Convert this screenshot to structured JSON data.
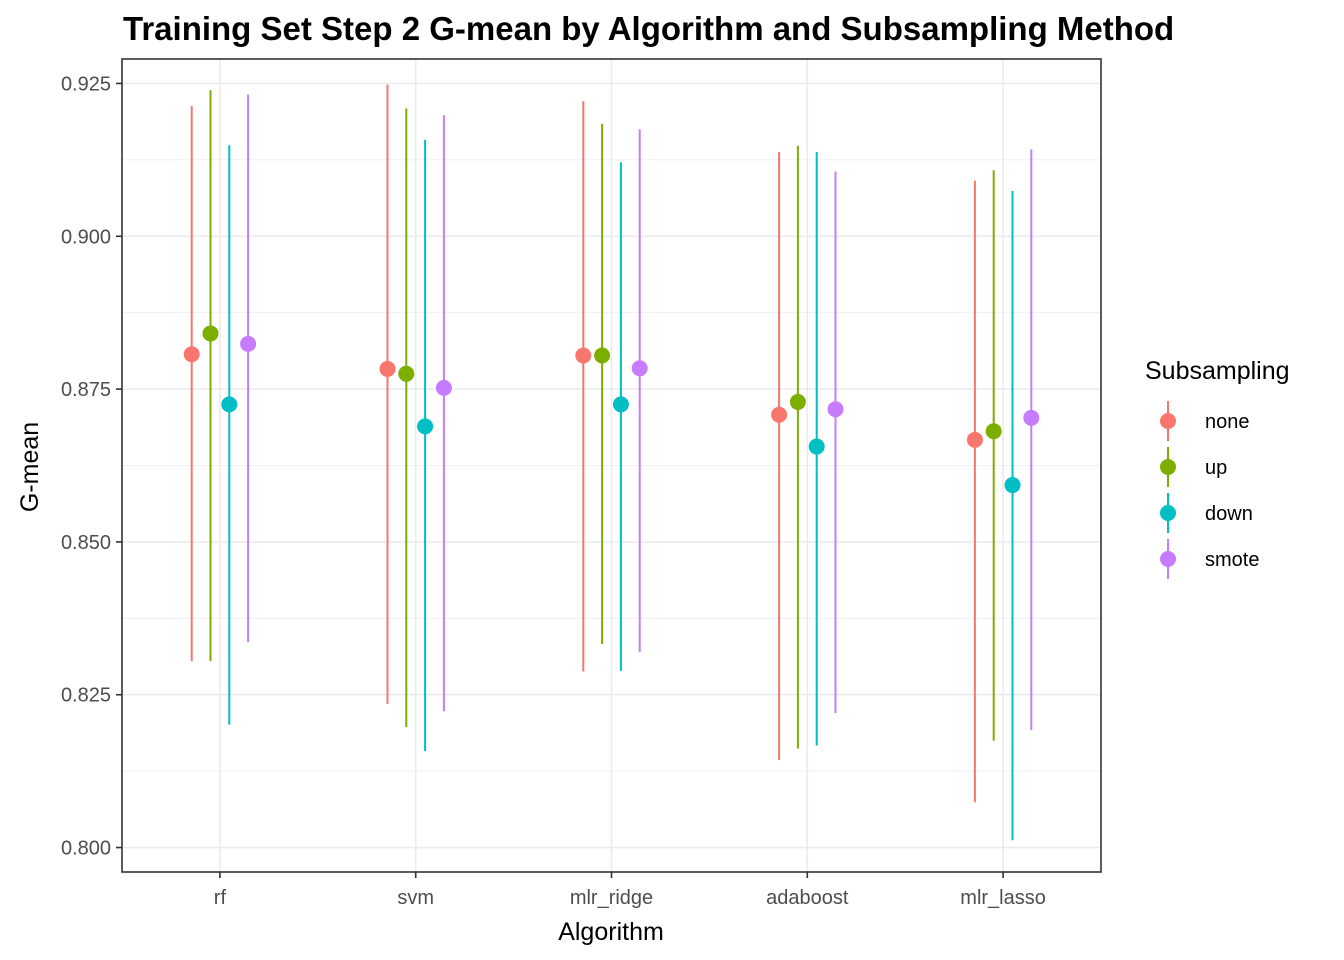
{
  "chart_data": {
    "type": "scatter",
    "title": "Training Set Step 2 G-mean by Algorithm and Subsampling Method",
    "xlabel": "Algorithm",
    "ylabel": "G-mean",
    "categories": [
      "rf",
      "svm",
      "mlr_ridge",
      "adaboost",
      "mlr_lasso"
    ],
    "ylim": [
      0.796,
      0.929
    ],
    "yticks": [
      "0.800",
      "0.825",
      "0.850",
      "0.875",
      "0.900",
      "0.925"
    ],
    "grid": true,
    "legend": {
      "title": "Subsampling",
      "position": "right"
    },
    "series": [
      {
        "name": "none",
        "color": "#F8766D",
        "values": [
          0.8807,
          0.8783,
          0.8805,
          0.8708,
          0.8667
        ],
        "lower": [
          0.8305,
          0.8235,
          0.8288,
          0.8143,
          0.8074
        ],
        "upper": [
          0.9213,
          0.9248,
          0.9221,
          0.9138,
          0.9091
        ]
      },
      {
        "name": "up",
        "color": "#7CAE00",
        "values": [
          0.8841,
          0.8775,
          0.8805,
          0.8729,
          0.8681
        ],
        "lower": [
          0.8305,
          0.8197,
          0.8333,
          0.8162,
          0.8175
        ],
        "upper": [
          0.9239,
          0.9209,
          0.9184,
          0.9148,
          0.9108
        ]
      },
      {
        "name": "down",
        "color": "#00BFC4",
        "values": [
          0.8725,
          0.8689,
          0.8725,
          0.8656,
          0.8593
        ],
        "lower": [
          0.8201,
          0.8158,
          0.8289,
          0.8167,
          0.8012
        ],
        "upper": [
          0.9149,
          0.9158,
          0.9121,
          0.9138,
          0.9074
        ]
      },
      {
        "name": "smote",
        "color": "#C77CFF",
        "values": [
          0.8824,
          0.8752,
          0.8784,
          0.8717,
          0.8703
        ],
        "lower": [
          0.8336,
          0.8223,
          0.832,
          0.822,
          0.8192
        ],
        "upper": [
          0.9232,
          0.9198,
          0.9175,
          0.9106,
          0.9142
        ]
      }
    ]
  }
}
